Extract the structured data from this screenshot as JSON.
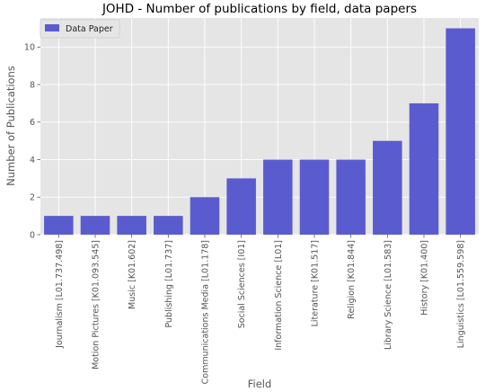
{
  "chart_data": {
    "type": "bar",
    "title": "JOHD - Number of publications by field, data papers",
    "xlabel": "Field",
    "ylabel": "Number of Publications",
    "ylim": [
      0,
      11.55
    ],
    "yticks": [
      0,
      2,
      4,
      6,
      8,
      10
    ],
    "grid": true,
    "legend_position": "top-left",
    "series": [
      {
        "name": "Data Paper",
        "color": "#5b5bd0",
        "values": [
          1,
          1,
          1,
          1,
          2,
          3,
          4,
          4,
          4,
          5,
          7,
          11
        ]
      }
    ],
    "categories": [
      "Journalism [L01.737.498]",
      "Motion Pictures [K01.093.545]",
      "Music [K01.602]",
      "Publishing [L01.737]",
      "Communications Media [L01.178]",
      "Social Sciences [I01]",
      "Information Science [L01]",
      "Literature [K01.517]",
      "Religion [K01.844]",
      "Library Science [L01.583]",
      "History [K01.400]",
      "Linguistics [L01.559.598]"
    ],
    "colors": {
      "plot_background": "#e5e5e5",
      "grid": "#ffffff",
      "tick": "#555555"
    }
  }
}
